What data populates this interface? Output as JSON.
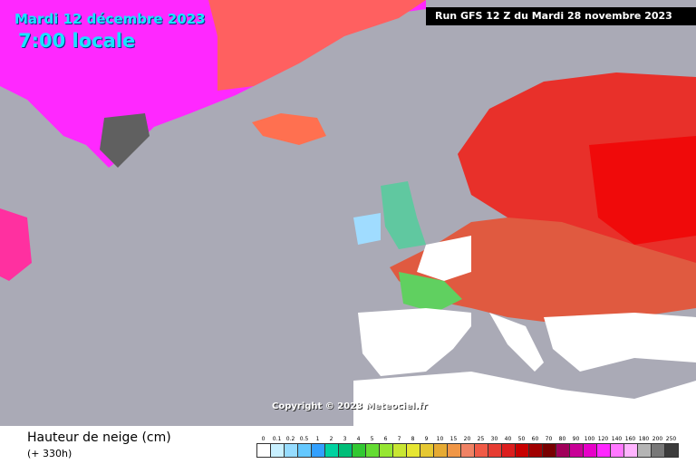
{
  "header": {
    "date": "Mardi 12 décembre 2023",
    "time": "7:00 locale",
    "run": "Run GFS 12 Z du Mardi 28 novembre 2023"
  },
  "footer": {
    "copyright": "Copyright © 2023 Meteociel.fr"
  },
  "legend": {
    "title": "Hauteur de neige (cm)",
    "lead_time": "(+ 330h)",
    "items": [
      {
        "label": "0",
        "color": "#ffffff"
      },
      {
        "label": "0.1",
        "color": "#c8f0ff"
      },
      {
        "label": "0.2",
        "color": "#96dcff"
      },
      {
        "label": "0.5",
        "color": "#64c8ff"
      },
      {
        "label": "1",
        "color": "#32a0ff"
      },
      {
        "label": "2",
        "color": "#00d2a0"
      },
      {
        "label": "3",
        "color": "#00be78"
      },
      {
        "label": "4",
        "color": "#32c832"
      },
      {
        "label": "5",
        "color": "#64dc32"
      },
      {
        "label": "6",
        "color": "#96e632"
      },
      {
        "label": "7",
        "color": "#c8e632"
      },
      {
        "label": "8",
        "color": "#e6e632"
      },
      {
        "label": "9",
        "color": "#e6c832"
      },
      {
        "label": "10",
        "color": "#e6aa32"
      },
      {
        "label": "15",
        "color": "#f09646"
      },
      {
        "label": "20",
        "color": "#f08264"
      },
      {
        "label": "25",
        "color": "#f05a46"
      },
      {
        "label": "30",
        "color": "#e63c32"
      },
      {
        "label": "40",
        "color": "#dc1e1e"
      },
      {
        "label": "50",
        "color": "#c80000"
      },
      {
        "label": "60",
        "color": "#a00000"
      },
      {
        "label": "70",
        "color": "#780000"
      },
      {
        "label": "80",
        "color": "#a0005a"
      },
      {
        "label": "90",
        "color": "#c80096"
      },
      {
        "label": "100",
        "color": "#e600c8"
      },
      {
        "label": "120",
        "color": "#ff28ff"
      },
      {
        "label": "140",
        "color": "#ff78ff"
      },
      {
        "label": "160",
        "color": "#ffb4ff"
      },
      {
        "label": "180",
        "color": "#b4b4b4"
      },
      {
        "label": "200",
        "color": "#787878"
      },
      {
        "label": "250",
        "color": "#3c3c3c"
      }
    ]
  }
}
